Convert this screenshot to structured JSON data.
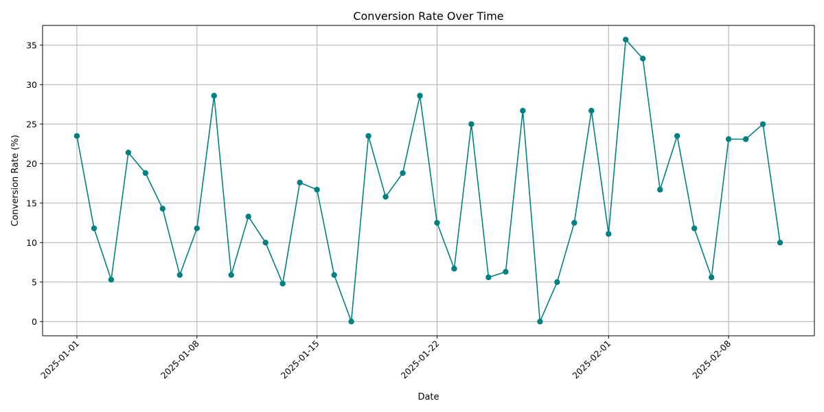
{
  "chart_data": {
    "type": "line",
    "title": "Conversion Rate Over Time",
    "xlabel": "Date",
    "ylabel": "Conversion Rate (%)",
    "x": [
      "2025-01-01",
      "2025-01-02",
      "2025-01-03",
      "2025-01-04",
      "2025-01-05",
      "2025-01-06",
      "2025-01-07",
      "2025-01-08",
      "2025-01-09",
      "2025-01-10",
      "2025-01-11",
      "2025-01-12",
      "2025-01-13",
      "2025-01-14",
      "2025-01-15",
      "2025-01-16",
      "2025-01-17",
      "2025-01-18",
      "2025-01-19",
      "2025-01-20",
      "2025-01-21",
      "2025-01-22",
      "2025-01-23",
      "2025-01-24",
      "2025-01-25",
      "2025-01-26",
      "2025-01-27",
      "2025-01-28",
      "2025-01-29",
      "2025-01-30",
      "2025-01-31",
      "2025-02-01",
      "2025-02-02",
      "2025-02-03",
      "2025-02-04",
      "2025-02-05",
      "2025-02-06",
      "2025-02-07",
      "2025-02-08",
      "2025-02-09",
      "2025-02-10",
      "2025-02-11"
    ],
    "series": [
      {
        "color": "#008080",
        "marker": "circle",
        "values": [
          23.5,
          11.8,
          5.3,
          21.4,
          18.8,
          14.3,
          5.9,
          11.8,
          28.6,
          5.9,
          13.3,
          10.0,
          4.8,
          17.6,
          16.7,
          5.9,
          0.0,
          23.5,
          15.8,
          18.8,
          28.6,
          12.5,
          6.7,
          25.0,
          5.6,
          6.3,
          26.7,
          0.0,
          5.0,
          12.5,
          26.7,
          11.1,
          35.7,
          33.3,
          16.7,
          23.5,
          11.8,
          5.6,
          23.1,
          23.1,
          25.0,
          10.0
        ]
      }
    ],
    "xticks": [
      "2025-01-01",
      "2025-01-08",
      "2025-01-15",
      "2025-01-22",
      "2025-02-01",
      "2025-02-08"
    ],
    "yticks": [
      0,
      5,
      10,
      15,
      20,
      25,
      30,
      35
    ],
    "ylim": [
      -1.8,
      37.5
    ],
    "xlim": [
      "2024-12-30",
      "2025-02-13"
    ],
    "grid": true,
    "legend": "none"
  }
}
